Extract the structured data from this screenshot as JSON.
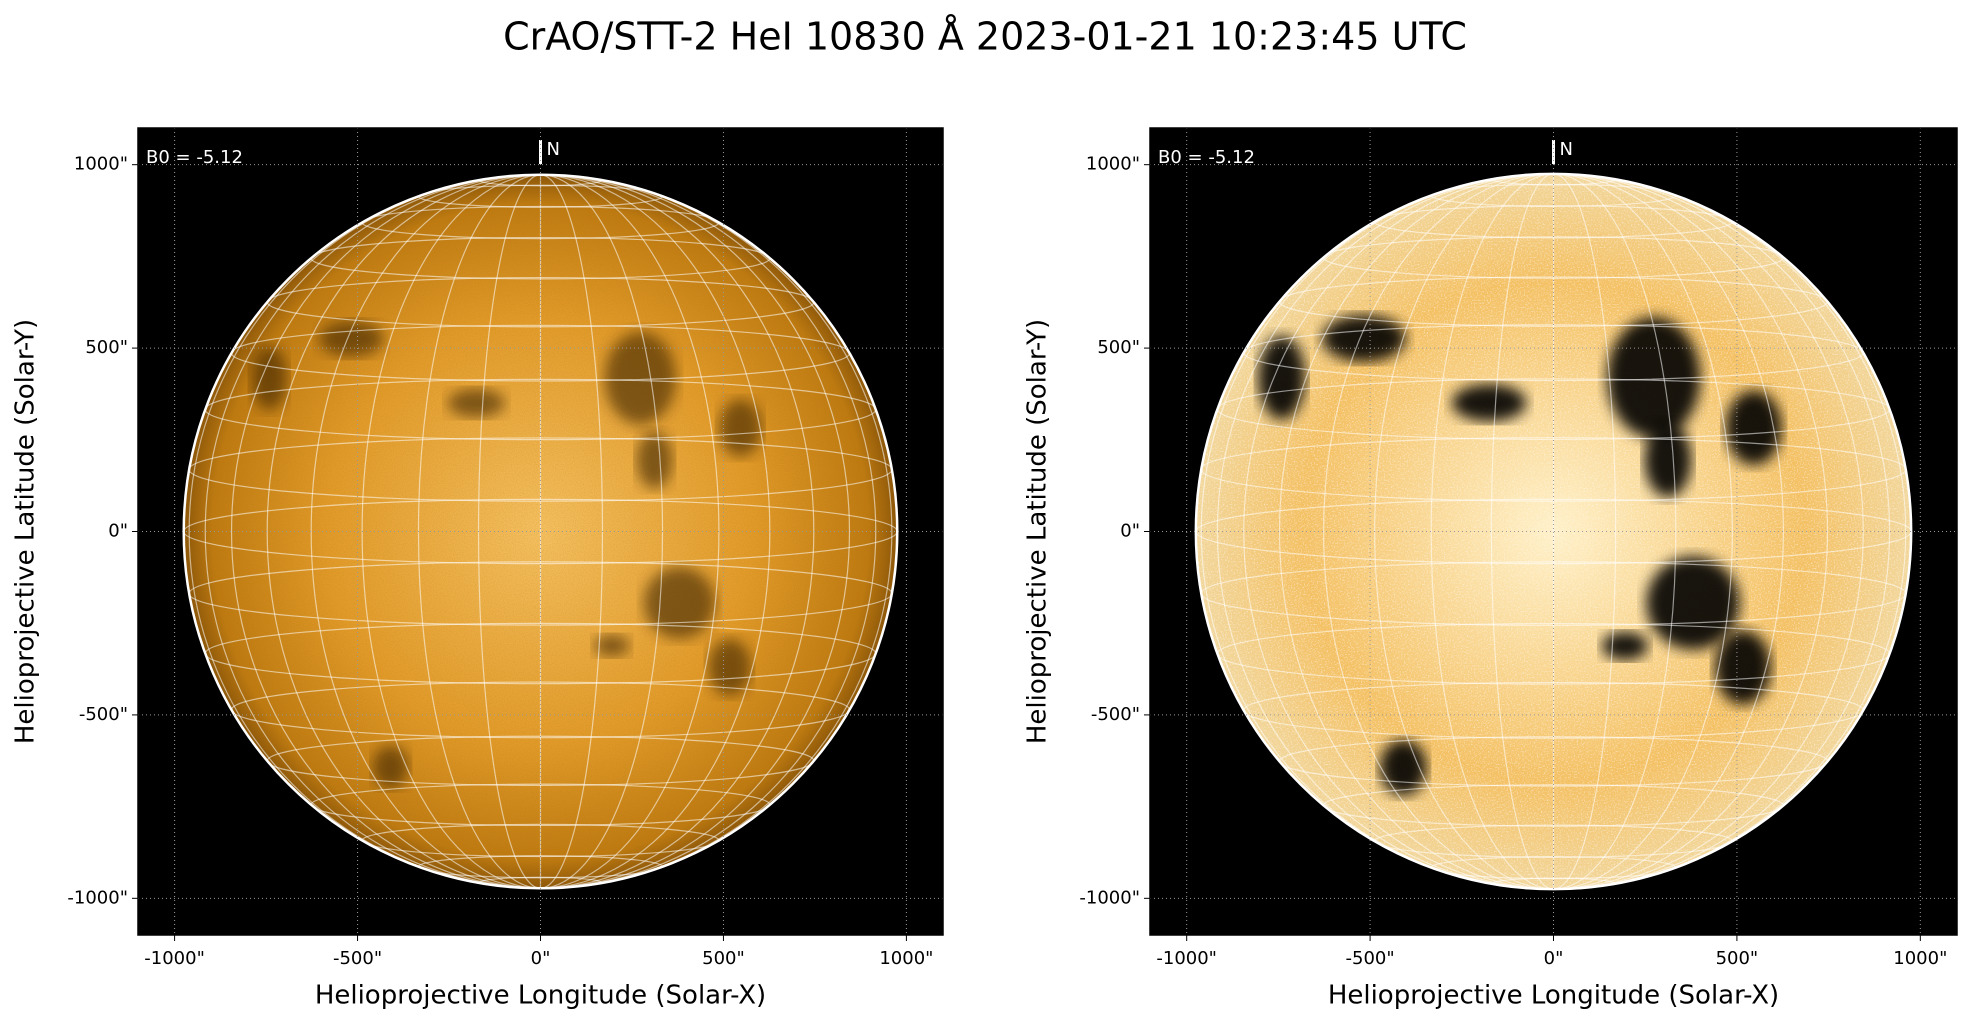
{
  "title": "CrAO/STT-2 HeI 10830 Å 2023-01-21 10:23:45 UTC",
  "chart_data": [
    {
      "type": "image",
      "xlabel": "Helioprojective Longitude (Solar-X)",
      "ylabel": "Helioprojective Latitude (Solar-Y)",
      "annotation": "B0 = -5.12",
      "north_label": "N",
      "solar_radius": 975,
      "xlim": [
        -1100,
        1100
      ],
      "ylim": [
        -1100,
        1100
      ],
      "xticks": [
        {
          "value": -1000,
          "label": "-1000\""
        },
        {
          "value": -500,
          "label": "-500\""
        },
        {
          "value": 0,
          "label": "0\""
        },
        {
          "value": 500,
          "label": "500\""
        },
        {
          "value": 1000,
          "label": "1000\""
        }
      ],
      "yticks": [
        {
          "value": -1000,
          "label": "-1000\""
        },
        {
          "value": -500,
          "label": "-500\""
        },
        {
          "value": 0,
          "label": "0\""
        },
        {
          "value": 500,
          "label": "500\""
        },
        {
          "value": 1000,
          "label": "1000\""
        }
      ],
      "grid": true
    },
    {
      "type": "image",
      "xlabel": "Helioprojective Longitude (Solar-X)",
      "ylabel": "Helioprojective Latitude (Solar-Y)",
      "annotation": "B0 = -5.12",
      "north_label": "N",
      "solar_radius": 975,
      "xlim": [
        -1100,
        1100
      ],
      "ylim": [
        -1100,
        1100
      ],
      "xticks": [
        {
          "value": -1000,
          "label": "-1000\""
        },
        {
          "value": -500,
          "label": "-500\""
        },
        {
          "value": 0,
          "label": "0\""
        },
        {
          "value": 500,
          "label": "500\""
        },
        {
          "value": 1000,
          "label": "1000\""
        }
      ],
      "yticks": [
        {
          "value": -1000,
          "label": "-1000\""
        },
        {
          "value": -500,
          "label": "-500\""
        },
        {
          "value": 0,
          "label": "0\""
        },
        {
          "value": 500,
          "label": "500\""
        },
        {
          "value": 1000,
          "label": "1000\""
        }
      ],
      "grid": true
    }
  ]
}
